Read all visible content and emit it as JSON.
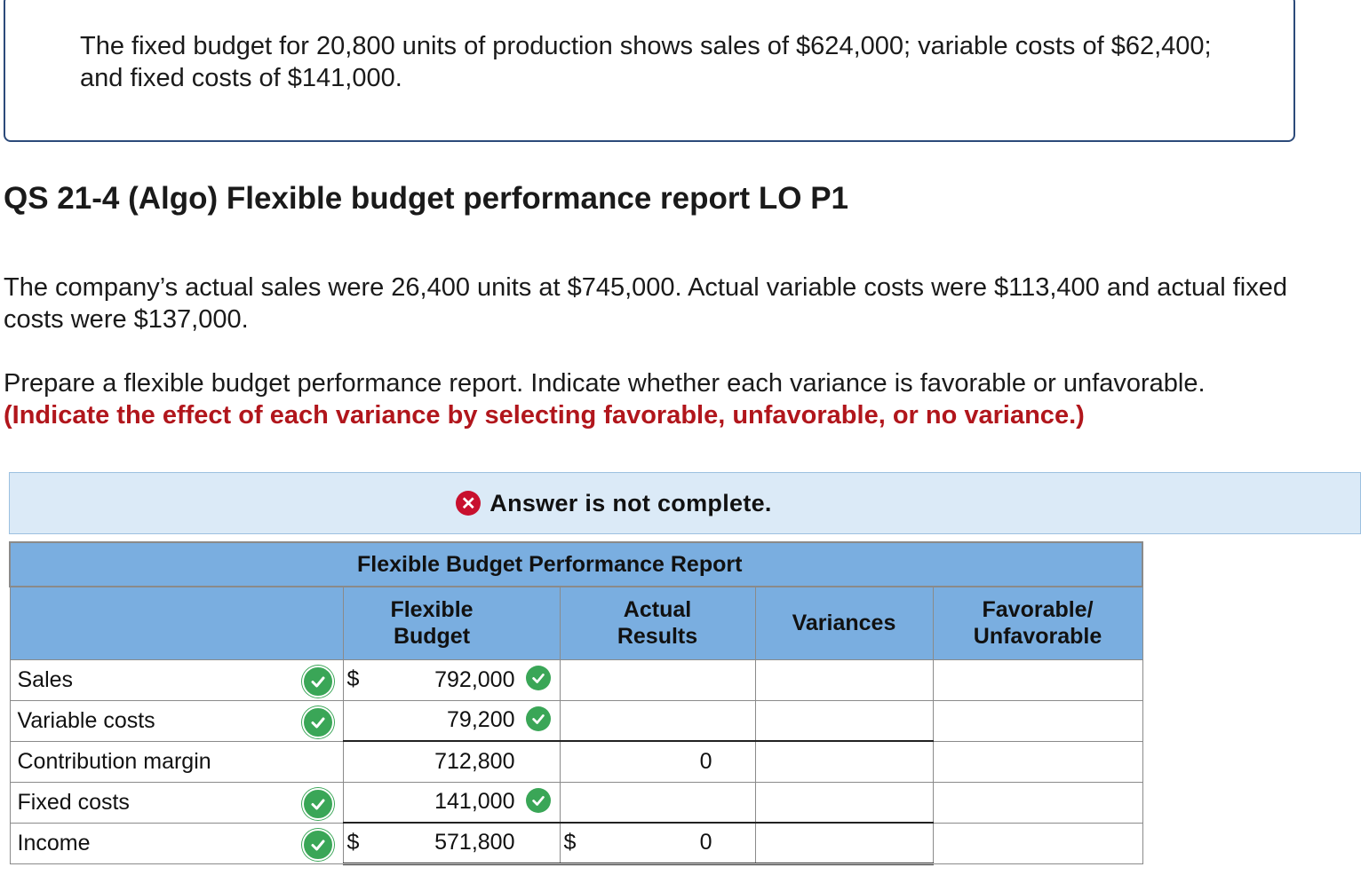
{
  "intro": {
    "text": "The fixed budget for 20,800 units of production shows sales of $624,000; variable costs of $62,400; and fixed costs of $141,000."
  },
  "question": {
    "title": "QS 21-4 (Algo) Flexible budget performance report LO P1",
    "paragraph1": "The company’s actual sales were 26,400 units at $745,000. Actual variable costs were $113,400 and actual fixed costs were $137,000.",
    "paragraph2": "Prepare a flexible budget performance report. Indicate whether each variance is favorable or unfavorable.",
    "instruction": "(Indicate the effect of each variance by selecting favorable, unfavorable, or no variance.)"
  },
  "answer_banner": {
    "icon": "x-circle-icon",
    "text": "Answer is not complete."
  },
  "report": {
    "title": "Flexible Budget Performance Report",
    "columns": {
      "flexible_budget": "Flexible\nBudget",
      "actual_results": "Actual\nResults",
      "variances": "Variances",
      "fav_unfav": "Favorable/\nUnfavorable"
    },
    "currency_symbol": "$",
    "rows": [
      {
        "label": "Sales",
        "label_correct": true,
        "flexible_budget": "792,000",
        "fb_correct": true,
        "actual": "",
        "variance": "",
        "fav_unfav": ""
      },
      {
        "label": "Variable costs",
        "label_correct": true,
        "flexible_budget": "79,200",
        "fb_correct": true,
        "actual": "",
        "variance": "",
        "fav_unfav": ""
      },
      {
        "label": "Contribution margin",
        "label_correct": false,
        "flexible_budget": "712,800",
        "fb_correct": false,
        "actual": "0",
        "variance": "",
        "fav_unfav": ""
      },
      {
        "label": "Fixed costs",
        "label_correct": true,
        "flexible_budget": "141,000",
        "fb_correct": true,
        "actual": "",
        "variance": "",
        "fav_unfav": ""
      },
      {
        "label": "Income",
        "label_correct": true,
        "flexible_budget": "571,800",
        "fb_correct": false,
        "actual": "0",
        "variance": "",
        "fav_unfav": ""
      }
    ],
    "check_color": "#3aa657",
    "header_color": "#7aaee0"
  }
}
